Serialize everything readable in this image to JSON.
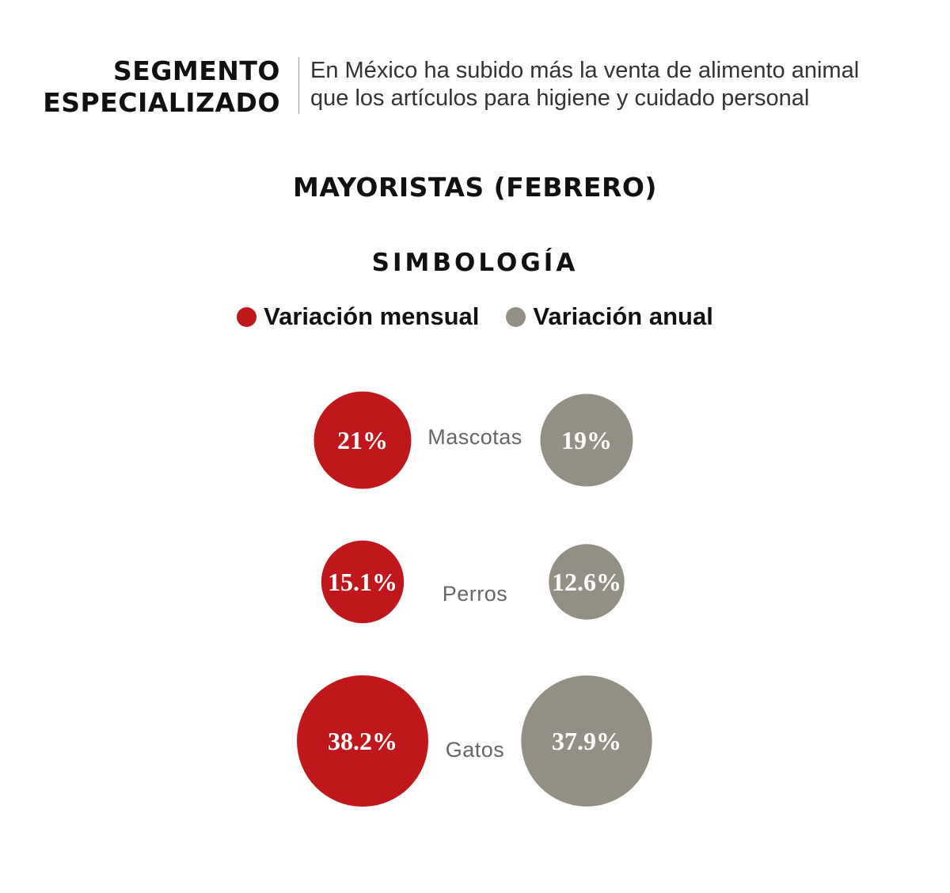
{
  "header": {
    "title_line1": "SEGMENTO",
    "title_line2": "ESPECIALIZADO",
    "subtitle_line1": "En México ha subido más la venta de alimento animal",
    "subtitle_line2": "que los artículos para higiene y cuidado personal"
  },
  "legend": {
    "title": "SIMBOLOGÍA",
    "items": [
      {
        "label": "Variación mensual",
        "color": "#c0171c"
      },
      {
        "label": "Variación anual",
        "color": "#948f84"
      }
    ]
  },
  "chart_data": {
    "type": "bubble",
    "title": "MAYORISTAS (FEBRERO)",
    "categories": [
      "Mascotas",
      "Perros",
      "Gatos"
    ],
    "series": [
      {
        "name": "Variación mensual",
        "color": "#c0171c",
        "values": [
          21,
          15.1,
          38.2
        ],
        "labels": [
          "21%",
          "15.1%",
          "38.2%"
        ]
      },
      {
        "name": "Variación anual",
        "color": "#948f84",
        "values": [
          19,
          12.6,
          37.9
        ],
        "labels": [
          "19%",
          "12.6%",
          "37.9%"
        ]
      }
    ]
  }
}
